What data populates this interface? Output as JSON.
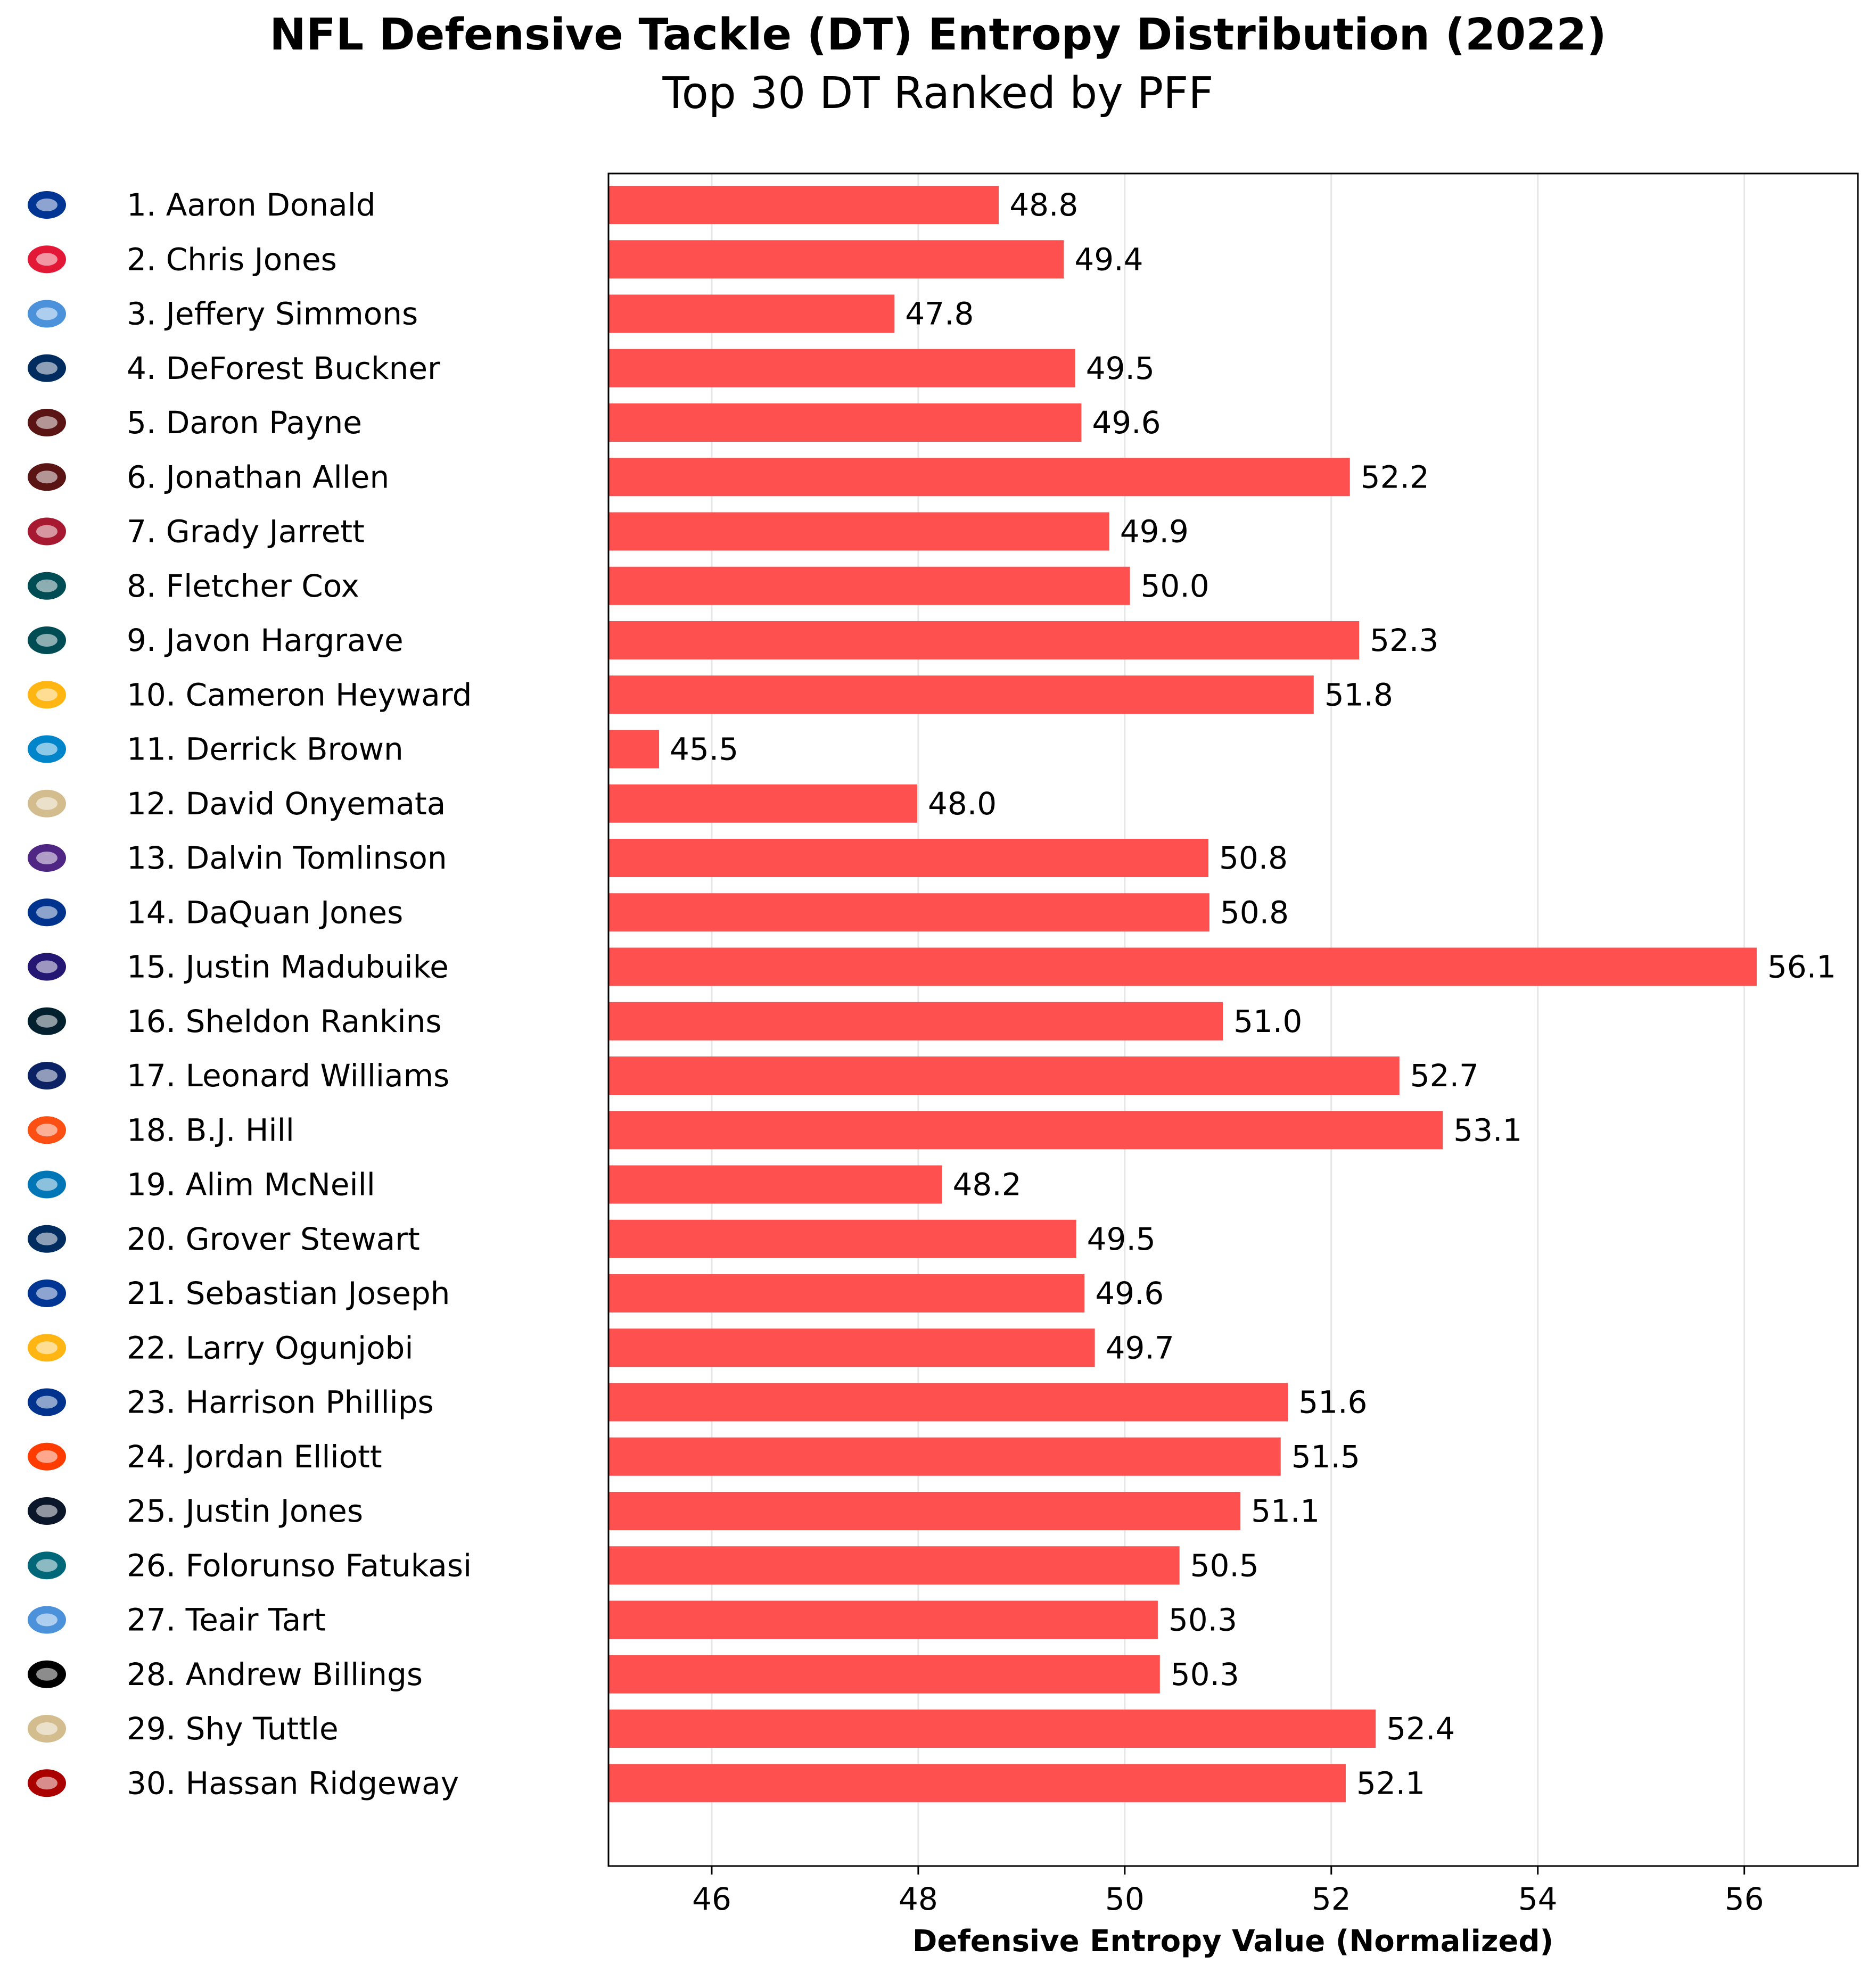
{
  "chart_data": {
    "type": "bar",
    "orientation": "horizontal",
    "title": "NFL Defensive Tackle (DT) Entropy Distribution (2022)",
    "subtitle": "Top 30 DT Ranked by PFF",
    "xlabel": "Defensive Entropy Value (Normalized)",
    "ylabel": "",
    "xlim": [
      45,
      57.1
    ],
    "xticks": [
      46,
      48,
      50,
      52,
      54,
      56
    ],
    "grid": "vertical, light",
    "bar_color": "#ff4d4d",
    "value_labels": [
      "48.8",
      "49.4",
      "47.8",
      "49.5",
      "49.6",
      "52.2",
      "49.9",
      "50.0",
      "52.3",
      "51.8",
      "45.5",
      "48.0",
      "50.8",
      "50.8",
      "56.1",
      "51.0",
      "52.7",
      "53.1",
      "48.2",
      "49.5",
      "49.6",
      "49.7",
      "51.6",
      "51.5",
      "51.1",
      "50.5",
      "50.3",
      "50.3",
      "52.4",
      "52.1"
    ],
    "categories": [
      "1. Aaron Donald",
      "2. Chris Jones",
      "3. Jeffery Simmons",
      "4. DeForest Buckner",
      "5. Daron Payne",
      "6. Jonathan Allen",
      "7. Grady Jarrett",
      "8. Fletcher Cox",
      "9. Javon Hargrave",
      "10. Cameron Heyward",
      "11. Derrick Brown",
      "12. David Onyemata",
      "13. Dalvin Tomlinson",
      "14. DaQuan Jones",
      "15. Justin Madubuike",
      "16. Sheldon Rankins",
      "17. Leonard Williams",
      "18. B.J. Hill",
      "19. Alim McNeill",
      "20. Grover Stewart",
      "21. Sebastian Joseph",
      "22. Larry Ogunjobi",
      "23. Harrison Phillips",
      "24. Jordan Elliott",
      "25. Justin Jones",
      "26. Folorunso Fatukasi",
      "27. Teair Tart",
      "28. Andrew Billings",
      "29. Shy Tuttle",
      "30. Hassan Ridgeway"
    ],
    "values": [
      48.78,
      49.41,
      47.77,
      49.52,
      49.58,
      52.18,
      49.85,
      50.05,
      52.27,
      51.83,
      45.49,
      47.99,
      50.81,
      50.82,
      56.12,
      50.95,
      52.66,
      53.08,
      48.23,
      49.53,
      49.61,
      49.71,
      51.58,
      51.51,
      51.12,
      50.53,
      50.32,
      50.34,
      52.43,
      52.14
    ],
    "team_logos": [
      "rams-logo-icon",
      "chiefs-logo-icon",
      "titans-logo-icon",
      "colts-logo-icon",
      "commanders-logo-icon",
      "commanders-logo-icon",
      "falcons-logo-icon",
      "eagles-logo-icon",
      "eagles-logo-icon",
      "steelers-logo-icon",
      "panthers-logo-icon",
      "saints-logo-icon",
      "vikings-logo-icon",
      "bills-logo-icon",
      "ravens-logo-icon",
      "texans-logo-icon",
      "giants-logo-icon",
      "bengals-logo-icon",
      "lions-logo-icon",
      "colts-logo-icon",
      "rams-logo-icon",
      "steelers-logo-icon",
      "bills-logo-icon",
      "browns-logo-icon",
      "bears-logo-icon",
      "jaguars-logo-icon",
      "titans-logo-icon",
      "raiders-logo-icon",
      "saints-logo-icon",
      "49ers-logo-icon"
    ],
    "logo_colors": [
      "#003594",
      "#e31837",
      "#4b92db",
      "#002c5f",
      "#5a1414",
      "#5a1414",
      "#a71930",
      "#004c54",
      "#004c54",
      "#ffb612",
      "#0085ca",
      "#d3bc8d",
      "#4f2683",
      "#00338d",
      "#241773",
      "#03202f",
      "#0b2265",
      "#fb4f14",
      "#0076b6",
      "#002c5f",
      "#003594",
      "#ffb612",
      "#00338d",
      "#ff3c00",
      "#0b162a",
      "#006778",
      "#4b92db",
      "#000000",
      "#d3bc8d",
      "#aa0000"
    ]
  }
}
